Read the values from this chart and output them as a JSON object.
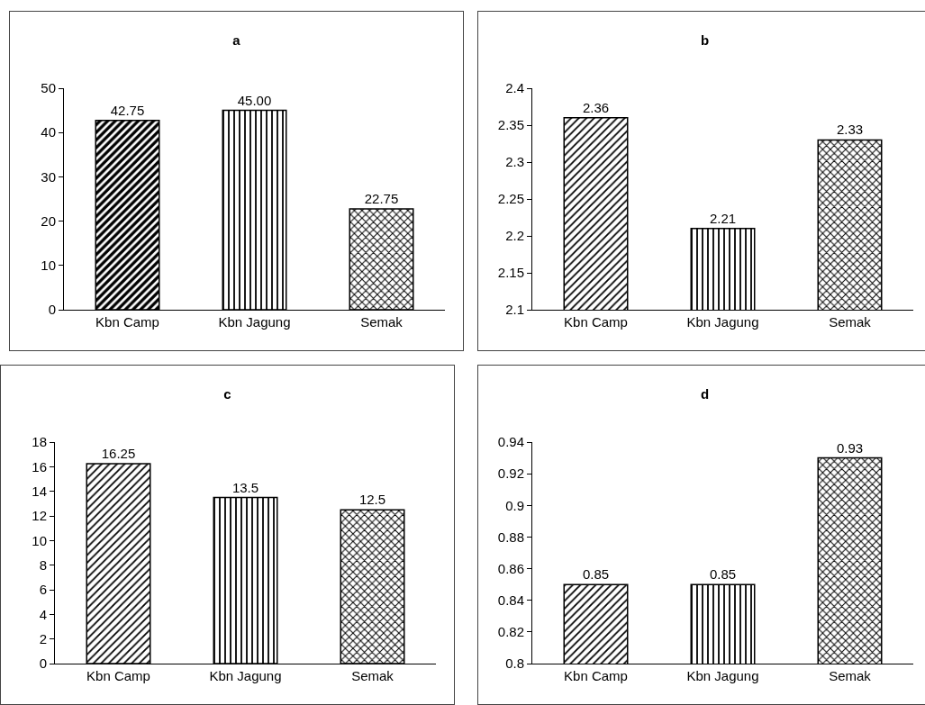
{
  "chart_data": [
    {
      "type": "bar",
      "title": "a",
      "categories": [
        "Kbn Camp",
        "Kbn Jagung",
        "Semak"
      ],
      "values": [
        42.75,
        45,
        22.75
      ],
      "value_labels": [
        "42.75",
        "45.00",
        "22.75"
      ],
      "color": "#000000",
      "ylim": [
        0,
        50
      ],
      "yticks": [
        0,
        10,
        20,
        30,
        40,
        50
      ],
      "grid": false,
      "legend": false
    },
    {
      "type": "bar",
      "title": "b",
      "categories": [
        "Kbn Camp",
        "Kbn Jagung",
        "Semak"
      ],
      "values": [
        2.36,
        2.21,
        2.33
      ],
      "value_labels": [
        "2.36",
        "2.21",
        "2.33"
      ],
      "color": "#000000",
      "ylim": [
        2.1,
        2.4
      ],
      "yticks": [
        {
          "value": 2.1,
          "label": "2.1"
        },
        {
          "value": 2.15,
          "label": "2.15"
        },
        {
          "value": 2.2,
          "label": "2.2"
        },
        {
          "value": 2.25,
          "label": "2.25"
        },
        {
          "value": 2.3,
          "label": "2.3"
        },
        {
          "value": 2.35,
          "label": "2.35"
        },
        {
          "value": 2.4,
          "label": "2.4"
        }
      ],
      "grid": false,
      "legend": false
    },
    {
      "type": "bar",
      "title": "c",
      "categories": [
        "Kbn Camp",
        "Kbn Jagung",
        "Semak"
      ],
      "values": [
        16.25,
        13.5,
        12.5
      ],
      "value_labels": [
        "16.25",
        "13.5",
        "12.5"
      ],
      "color": "#000000",
      "ylim": [
        0,
        18
      ],
      "yticks": [
        0,
        2,
        4,
        6,
        8,
        10,
        12,
        14,
        16,
        18
      ],
      "grid": false,
      "legend": false
    },
    {
      "type": "bar",
      "title": "d",
      "categories": [
        "Kbn Camp",
        "Kbn Jagung",
        "Semak"
      ],
      "values": [
        0.85,
        0.85,
        0.93
      ],
      "value_labels": [
        "0.85",
        "0.85",
        "0.93"
      ],
      "color": "#000000",
      "ylim": [
        0.8,
        0.94
      ],
      "yticks": [
        {
          "value": 0.8,
          "label": "0.8"
        },
        {
          "value": 0.82,
          "label": "0.82"
        },
        {
          "value": 0.84,
          "label": "0.84"
        },
        {
          "value": 0.86,
          "label": "0.86"
        },
        {
          "value": 0.88,
          "label": "0.88"
        },
        {
          "value": 0.9,
          "label": "0.9"
        },
        {
          "value": 0.92,
          "label": "0.92"
        },
        {
          "value": 0.94,
          "label": "0.94"
        }
      ],
      "grid": false,
      "legend": false
    }
  ]
}
